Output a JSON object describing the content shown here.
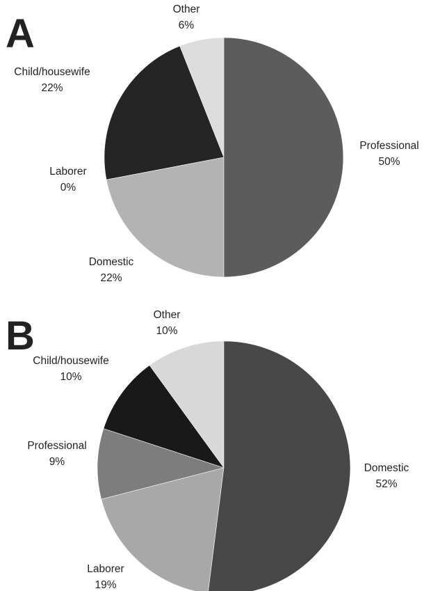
{
  "chart_data": [
    {
      "type": "pie",
      "panel": "A",
      "title": "",
      "categories": [
        "Professional",
        "Domestic",
        "Laborer",
        "Child/housewife",
        "Other"
      ],
      "values": [
        50,
        22,
        0,
        22,
        6
      ],
      "labels": [
        "50%",
        "22%",
        "0%",
        "22%",
        "6%"
      ],
      "colors": [
        "#5c5c5c",
        "#b3b3b3",
        "#8a8a8a",
        "#252525",
        "#dcdcdc"
      ],
      "start": "12 o'clock",
      "direction": "clockwise",
      "legend": "none"
    },
    {
      "type": "pie",
      "panel": "B",
      "title": "",
      "categories": [
        "Domestic",
        "Laborer",
        "Professional",
        "Child/housewife",
        "Other"
      ],
      "values": [
        52,
        19,
        9,
        10,
        10
      ],
      "labels": [
        "52%",
        "19%",
        "9%",
        "10%",
        "10%"
      ],
      "colors": [
        "#484848",
        "#a8a8a8",
        "#7d7d7d",
        "#191919",
        "#d8d8d8"
      ],
      "start": "12 o'clock",
      "direction": "clockwise",
      "legend": "none"
    }
  ]
}
